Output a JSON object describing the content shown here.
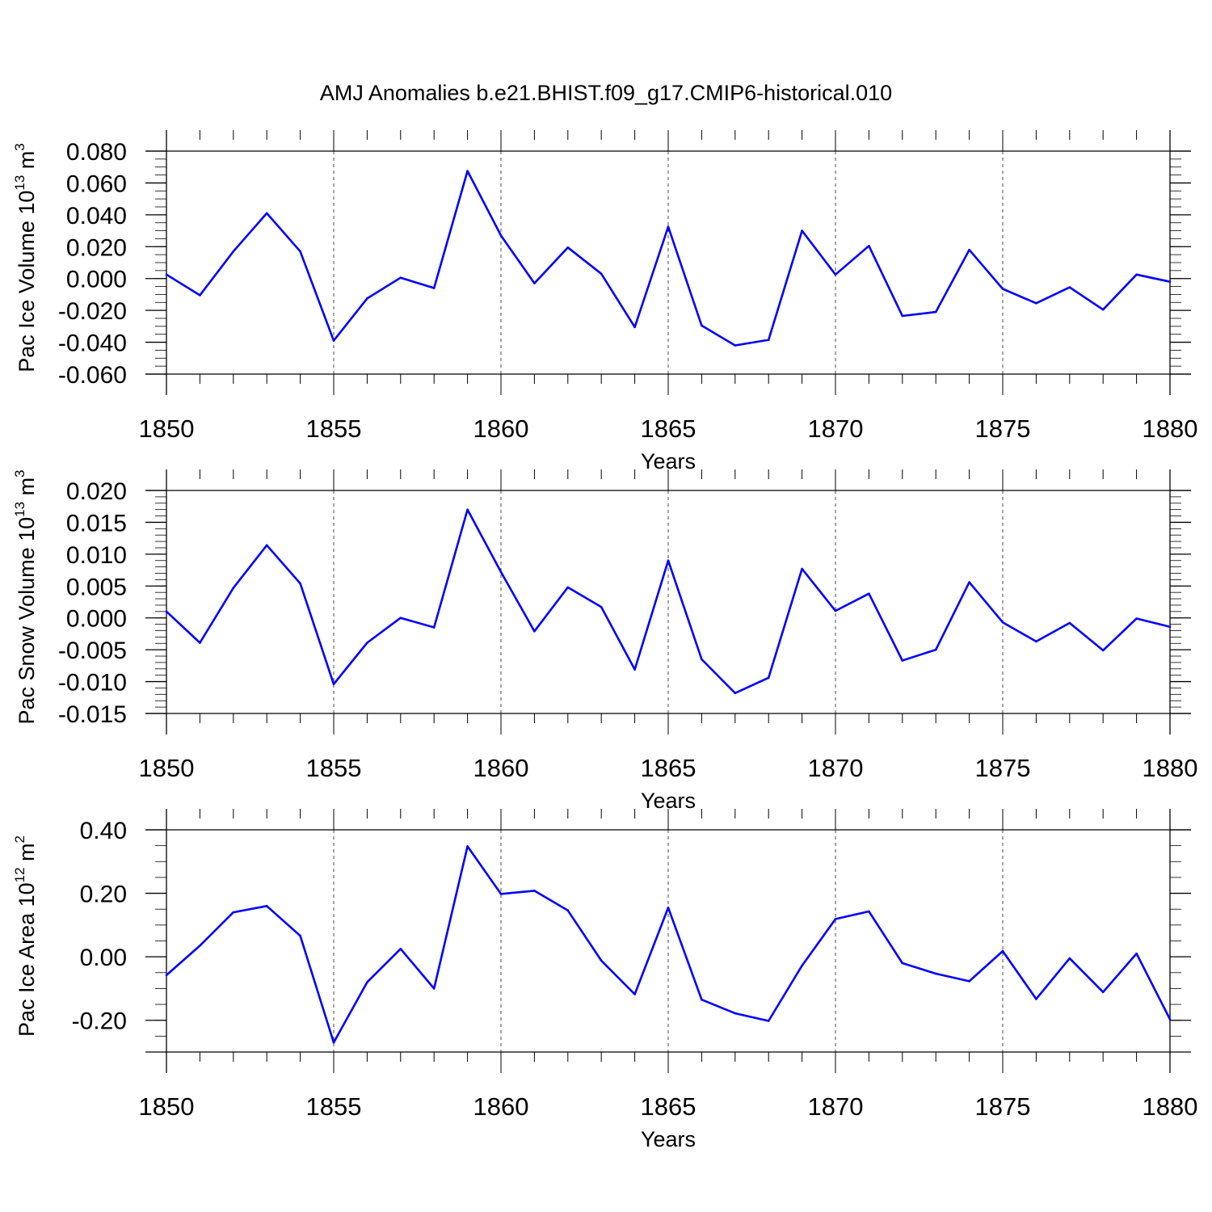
{
  "title": "AMJ Anomalies b.e21.BHIST.f09_g17.CMIP6-historical.010",
  "line_color": "#0000ff",
  "chart_data": [
    {
      "type": "line",
      "title": "AMJ Anomalies b.e21.BHIST.f09_g17.CMIP6-historical.010",
      "xlabel": "Years",
      "ylabel": {
        "base": "Pac Ice Volume 10",
        "exp1": "13",
        "mid": " m",
        "exp2": "3"
      },
      "xlim": [
        1850,
        1880
      ],
      "ylim": [
        -0.06,
        0.08
      ],
      "x_ticks": [
        1850,
        1855,
        1860,
        1865,
        1870,
        1875,
        1880
      ],
      "x_tick_labels": [
        "1850",
        "1855",
        "1860",
        "1865",
        "1870",
        "1875",
        "1880"
      ],
      "y_ticks": [
        -0.06,
        -0.04,
        -0.02,
        0.0,
        0.02,
        0.04,
        0.06,
        0.08
      ],
      "y_tick_labels": [
        "-0.060",
        "-0.040",
        "-0.020",
        "0.000",
        "0.020",
        "0.040",
        "0.060",
        "0.080"
      ],
      "y_minor_step": 0.005,
      "grid": "vertical-dashed",
      "x": [
        1850,
        1851,
        1852,
        1853,
        1854,
        1855,
        1856,
        1857,
        1858,
        1859,
        1860,
        1861,
        1862,
        1863,
        1864,
        1865,
        1866,
        1867,
        1868,
        1869,
        1870,
        1871,
        1872,
        1873,
        1874,
        1875,
        1876,
        1877,
        1878,
        1879,
        1880
      ],
      "values": [
        0.0025,
        -0.0105,
        0.017,
        0.041,
        0.017,
        -0.039,
        -0.0125,
        0.0005,
        -0.006,
        0.0675,
        0.027,
        -0.003,
        0.0195,
        0.003,
        -0.0305,
        0.0325,
        -0.0295,
        -0.042,
        -0.0385,
        0.03,
        0.0025,
        0.0205,
        -0.0235,
        -0.021,
        0.018,
        -0.0065,
        -0.0155,
        -0.0055,
        -0.0195,
        0.0025,
        -0.002
      ]
    },
    {
      "type": "line",
      "title": "",
      "xlabel": "Years",
      "ylabel": {
        "base": "Pac Snow Volume 10",
        "exp1": "13",
        "mid": " m",
        "exp2": "3"
      },
      "xlim": [
        1850,
        1880
      ],
      "ylim": [
        -0.015,
        0.02
      ],
      "x_ticks": [
        1850,
        1855,
        1860,
        1865,
        1870,
        1875,
        1880
      ],
      "x_tick_labels": [
        "1850",
        "1855",
        "1860",
        "1865",
        "1870",
        "1875",
        "1880"
      ],
      "y_ticks": [
        -0.015,
        -0.01,
        -0.005,
        0.0,
        0.005,
        0.01,
        0.015,
        0.02
      ],
      "y_tick_labels": [
        "-0.015",
        "-0.010",
        "-0.005",
        "0.000",
        "0.005",
        "0.010",
        "0.015",
        "0.020"
      ],
      "y_minor_step": 0.001,
      "grid": "vertical-dashed",
      "x": [
        1850,
        1851,
        1852,
        1853,
        1854,
        1855,
        1856,
        1857,
        1858,
        1859,
        1860,
        1861,
        1862,
        1863,
        1864,
        1865,
        1866,
        1867,
        1868,
        1869,
        1870,
        1871,
        1872,
        1873,
        1874,
        1875,
        1876,
        1877,
        1878,
        1879,
        1880
      ],
      "values": [
        0.001,
        -0.0039,
        0.0047,
        0.0114,
        0.0054,
        -0.0104,
        -0.0039,
        0.0,
        -0.0015,
        0.017,
        0.0072,
        -0.0021,
        0.0048,
        0.0017,
        -0.0081,
        0.009,
        -0.0065,
        -0.0118,
        -0.0094,
        0.0077,
        0.0011,
        0.0038,
        -0.0067,
        -0.005,
        0.0056,
        -0.0007,
        -0.0037,
        -0.0008,
        -0.0051,
        -0.0001,
        -0.0014
      ]
    },
    {
      "type": "line",
      "title": "",
      "xlabel": "Years",
      "ylabel": {
        "base": "Pac Ice Area 10",
        "exp1": "12",
        "mid": " m",
        "exp2": "2"
      },
      "xlim": [
        1850,
        1880
      ],
      "ylim": [
        -0.3,
        0.4
      ],
      "x_ticks": [
        1850,
        1855,
        1860,
        1865,
        1870,
        1875,
        1880
      ],
      "x_tick_labels": [
        "1850",
        "1855",
        "1860",
        "1865",
        "1870",
        "1875",
        "1880"
      ],
      "y_ticks": [
        -0.2,
        0.0,
        0.2,
        0.4
      ],
      "y_tick_labels": [
        "-0.20",
        "0.00",
        "0.20",
        "0.40"
      ],
      "y_minor_step": 0.05,
      "grid": "vertical-dashed",
      "x": [
        1850,
        1851,
        1852,
        1853,
        1854,
        1855,
        1856,
        1857,
        1858,
        1859,
        1860,
        1861,
        1862,
        1863,
        1864,
        1865,
        1866,
        1867,
        1868,
        1869,
        1870,
        1871,
        1872,
        1873,
        1874,
        1875,
        1876,
        1877,
        1878,
        1879,
        1880
      ],
      "values": [
        -0.058,
        0.035,
        0.14,
        0.16,
        0.066,
        -0.27,
        -0.08,
        0.025,
        -0.1,
        0.348,
        0.198,
        0.208,
        0.146,
        -0.012,
        -0.118,
        0.155,
        -0.135,
        -0.178,
        -0.202,
        -0.028,
        0.119,
        0.143,
        -0.02,
        -0.053,
        -0.077,
        0.018,
        -0.133,
        -0.005,
        -0.111,
        0.01,
        -0.197
      ]
    }
  ]
}
